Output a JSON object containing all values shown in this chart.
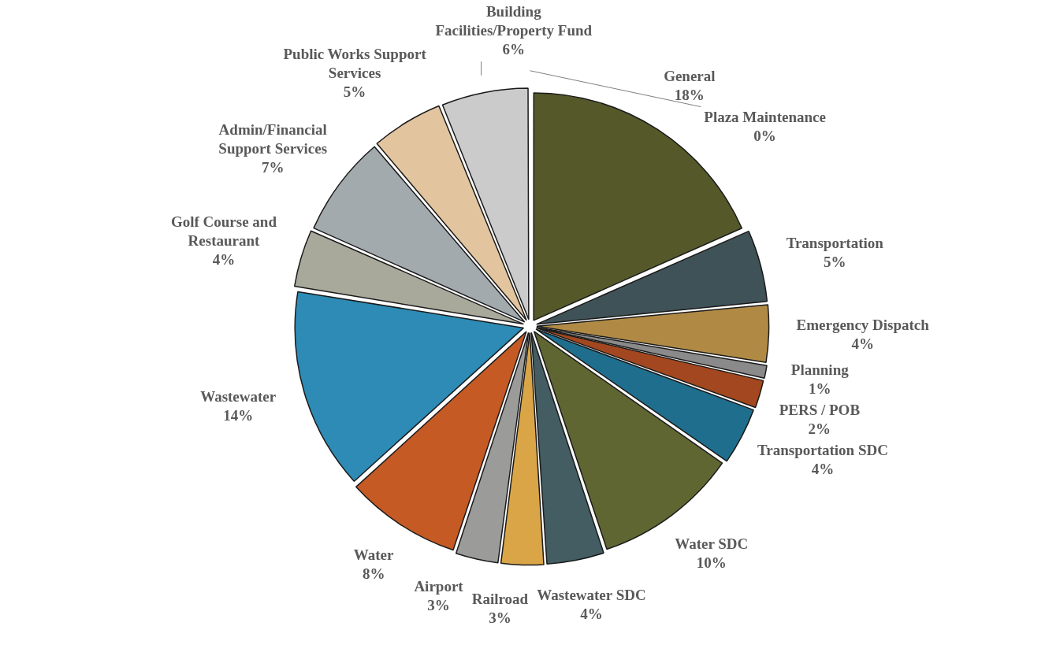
{
  "chart_data": {
    "type": "pie",
    "categories": [
      "General",
      "Transportation",
      "Emergency Dispatch",
      "Planning",
      "PERS / POB",
      "Transportation SDC",
      "Water SDC",
      "Wastewater SDC",
      "Railroad",
      "Airport",
      "Water",
      "Wastewater",
      "Golf Course and Restaurant",
      "Admin/Financial Support Services",
      "Public Works Support Services",
      "Building Facilities/Property Fund",
      "Plaza Maintenance"
    ],
    "values": [
      18,
      5,
      4,
      1,
      2,
      4,
      10,
      4,
      3,
      3,
      8,
      14,
      4,
      7,
      5,
      6,
      0
    ],
    "value_labels": [
      "18%",
      "5%",
      "4%",
      "1%",
      "2%",
      "4%",
      "10%",
      "4%",
      "3%",
      "3%",
      "8%",
      "14%",
      "4%",
      "7%",
      "5%",
      "6%",
      "0%"
    ],
    "colors": [
      "#55592a",
      "#3f5257",
      "#b08a45",
      "#8a8a8a",
      "#a2471f",
      "#206e8e",
      "#5f6632",
      "#435d62",
      "#d9a547",
      "#9b9c9a",
      "#c55a25",
      "#2d8bb5",
      "#a8a99b",
      "#a3aaae",
      "#e2c59f",
      "#cbcbcb",
      "#000000"
    ],
    "legend": false
  }
}
